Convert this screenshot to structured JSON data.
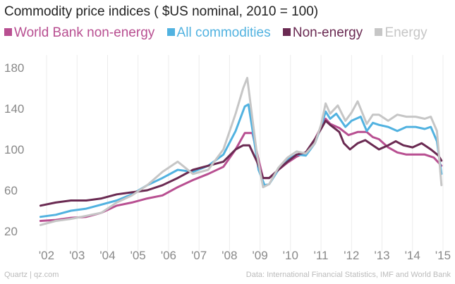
{
  "chart_data": {
    "type": "line",
    "title": "Commodity price indices ( $US nominal, 2010 = 100)",
    "xlabel": "",
    "ylabel": "",
    "ylim": [
      20,
      180
    ],
    "yticks": [
      20,
      60,
      100,
      140,
      180
    ],
    "xlim": [
      2001.7,
      2015.05
    ],
    "xticks": [
      {
        "value": 2002,
        "label": "'02"
      },
      {
        "value": 2003,
        "label": "'03"
      },
      {
        "value": 2004,
        "label": "'04"
      },
      {
        "value": 2005,
        "label": "'05"
      },
      {
        "value": 2006,
        "label": "'06"
      },
      {
        "value": 2007,
        "label": "'07"
      },
      {
        "value": 2008,
        "label": "'08"
      },
      {
        "value": 2009,
        "label": "'09"
      },
      {
        "value": 2010,
        "label": "'10"
      },
      {
        "value": 2011,
        "label": "'11"
      },
      {
        "value": 2012,
        "label": "'12"
      },
      {
        "value": 2013,
        "label": "'13"
      },
      {
        "value": 2014,
        "label": "'14"
      },
      {
        "value": 2015,
        "label": "'15"
      }
    ],
    "grid": "vertical",
    "series": [
      {
        "name": "World Bank non-energy",
        "color": "#b84f91",
        "points": [
          [
            2001.8,
            30
          ],
          [
            2002.3,
            31
          ],
          [
            2002.8,
            33
          ],
          [
            2003.3,
            34
          ],
          [
            2003.8,
            38
          ],
          [
            2004.3,
            45
          ],
          [
            2004.8,
            48
          ],
          [
            2005.3,
            52
          ],
          [
            2005.8,
            55
          ],
          [
            2006.3,
            63
          ],
          [
            2006.8,
            70
          ],
          [
            2007.3,
            76
          ],
          [
            2007.8,
            83
          ],
          [
            2008.2,
            100
          ],
          [
            2008.5,
            116
          ],
          [
            2008.75,
            116
          ],
          [
            2008.95,
            90
          ],
          [
            2009.1,
            72
          ],
          [
            2009.3,
            72
          ],
          [
            2009.6,
            80
          ],
          [
            2009.9,
            87
          ],
          [
            2010.2,
            93
          ],
          [
            2010.5,
            97
          ],
          [
            2010.8,
            110
          ],
          [
            2011.0,
            122
          ],
          [
            2011.15,
            130
          ],
          [
            2011.3,
            125
          ],
          [
            2011.6,
            121
          ],
          [
            2011.9,
            114
          ],
          [
            2012.2,
            117
          ],
          [
            2012.5,
            117
          ],
          [
            2012.7,
            112
          ],
          [
            2012.9,
            110
          ],
          [
            2013.2,
            102
          ],
          [
            2013.5,
            97
          ],
          [
            2013.8,
            95
          ],
          [
            2014.1,
            95
          ],
          [
            2014.4,
            95
          ],
          [
            2014.7,
            92
          ],
          [
            2014.95,
            84
          ]
        ]
      },
      {
        "name": "All commodities",
        "color": "#51b2e0",
        "points": [
          [
            2001.8,
            34
          ],
          [
            2002.3,
            36
          ],
          [
            2002.8,
            40
          ],
          [
            2003.3,
            42
          ],
          [
            2003.8,
            46
          ],
          [
            2004.3,
            50
          ],
          [
            2004.8,
            56
          ],
          [
            2005.3,
            65
          ],
          [
            2005.8,
            72
          ],
          [
            2006.3,
            80
          ],
          [
            2006.8,
            78
          ],
          [
            2007.3,
            84
          ],
          [
            2007.8,
            95
          ],
          [
            2008.2,
            118
          ],
          [
            2008.5,
            142
          ],
          [
            2008.62,
            144
          ],
          [
            2008.8,
            110
          ],
          [
            2008.95,
            80
          ],
          [
            2009.15,
            65
          ],
          [
            2009.3,
            66
          ],
          [
            2009.6,
            80
          ],
          [
            2009.9,
            90
          ],
          [
            2010.2,
            95
          ],
          [
            2010.5,
            94
          ],
          [
            2010.8,
            106
          ],
          [
            2011.0,
            122
          ],
          [
            2011.15,
            137
          ],
          [
            2011.3,
            130
          ],
          [
            2011.5,
            135
          ],
          [
            2011.8,
            122
          ],
          [
            2012.0,
            128
          ],
          [
            2012.3,
            132
          ],
          [
            2012.5,
            118
          ],
          [
            2012.7,
            126
          ],
          [
            2012.9,
            124
          ],
          [
            2013.2,
            122
          ],
          [
            2013.5,
            118
          ],
          [
            2013.8,
            122
          ],
          [
            2014.1,
            122
          ],
          [
            2014.4,
            120
          ],
          [
            2014.6,
            122
          ],
          [
            2014.8,
            108
          ],
          [
            2014.95,
            76
          ]
        ]
      },
      {
        "name": "Non-energy",
        "color": "#6a2a52",
        "points": [
          [
            2001.8,
            45
          ],
          [
            2002.3,
            48
          ],
          [
            2002.8,
            50
          ],
          [
            2003.3,
            50
          ],
          [
            2003.8,
            52
          ],
          [
            2004.3,
            56
          ],
          [
            2004.8,
            58
          ],
          [
            2005.3,
            60
          ],
          [
            2005.8,
            65
          ],
          [
            2006.3,
            72
          ],
          [
            2006.8,
            80
          ],
          [
            2007.3,
            84
          ],
          [
            2007.8,
            88
          ],
          [
            2008.2,
            100
          ],
          [
            2008.45,
            104
          ],
          [
            2008.65,
            104
          ],
          [
            2008.9,
            88
          ],
          [
            2009.1,
            72
          ],
          [
            2009.3,
            72
          ],
          [
            2009.6,
            80
          ],
          [
            2009.9,
            88
          ],
          [
            2010.2,
            95
          ],
          [
            2010.5,
            97
          ],
          [
            2010.8,
            110
          ],
          [
            2011.0,
            120
          ],
          [
            2011.15,
            128
          ],
          [
            2011.3,
            124
          ],
          [
            2011.6,
            117
          ],
          [
            2011.75,
            106
          ],
          [
            2011.95,
            100
          ],
          [
            2012.2,
            106
          ],
          [
            2012.45,
            109
          ],
          [
            2012.7,
            104
          ],
          [
            2012.9,
            100
          ],
          [
            2013.2,
            104
          ],
          [
            2013.45,
            108
          ],
          [
            2013.7,
            104
          ],
          [
            2014.0,
            102
          ],
          [
            2014.3,
            106
          ],
          [
            2014.6,
            100
          ],
          [
            2014.85,
            94
          ],
          [
            2014.95,
            89
          ]
        ]
      },
      {
        "name": "Energy",
        "color": "#c6c6c6",
        "points": [
          [
            2001.8,
            26
          ],
          [
            2002.3,
            30
          ],
          [
            2002.8,
            32
          ],
          [
            2003.3,
            35
          ],
          [
            2003.8,
            38
          ],
          [
            2004.3,
            48
          ],
          [
            2004.8,
            55
          ],
          [
            2005.3,
            65
          ],
          [
            2005.8,
            78
          ],
          [
            2006.3,
            88
          ],
          [
            2006.8,
            76
          ],
          [
            2007.3,
            80
          ],
          [
            2007.8,
            100
          ],
          [
            2008.2,
            135
          ],
          [
            2008.45,
            160
          ],
          [
            2008.58,
            170
          ],
          [
            2008.75,
            130
          ],
          [
            2008.9,
            95
          ],
          [
            2009.1,
            63
          ],
          [
            2009.3,
            66
          ],
          [
            2009.6,
            82
          ],
          [
            2009.9,
            92
          ],
          [
            2010.2,
            98
          ],
          [
            2010.5,
            96
          ],
          [
            2010.8,
            106
          ],
          [
            2011.0,
            124
          ],
          [
            2011.15,
            145
          ],
          [
            2011.3,
            135
          ],
          [
            2011.55,
            143
          ],
          [
            2011.8,
            128
          ],
          [
            2012.0,
            136
          ],
          [
            2012.2,
            147
          ],
          [
            2012.5,
            125
          ],
          [
            2012.7,
            134
          ],
          [
            2012.9,
            134
          ],
          [
            2013.2,
            128
          ],
          [
            2013.5,
            134
          ],
          [
            2013.8,
            132
          ],
          [
            2014.1,
            132
          ],
          [
            2014.4,
            130
          ],
          [
            2014.6,
            132
          ],
          [
            2014.8,
            118
          ],
          [
            2014.95,
            65
          ]
        ]
      }
    ]
  },
  "footer": {
    "source": "Quartz | qz.com",
    "credit": "Data: International Financial Statistics, IMF and World Bank"
  }
}
